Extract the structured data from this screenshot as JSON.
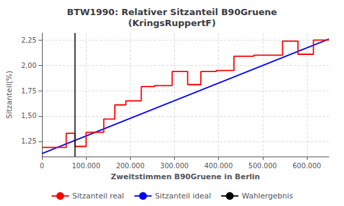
{
  "chart_data": {
    "type": "line",
    "title": "BTW1990: Relativer Sitzanteil B90Gruene\n(KringsRuppertF)",
    "xlabel": "Zweitstimmen B90Gruene in Berlin",
    "ylabel": "Sitzanteil(%)",
    "xlim": [
      0,
      650000
    ],
    "ylim": [
      1.1,
      2.32
    ],
    "xticks": [
      0,
      {
        "value": 100000,
        "label": "100.000"
      },
      {
        "value": 200000,
        "label": "200.000"
      },
      {
        "value": 300000,
        "label": "300.000"
      },
      {
        "value": 400000,
        "label": "400.000"
      },
      {
        "value": 500000,
        "label": "500.000"
      },
      {
        "value": 600000,
        "label": "600.000"
      }
    ],
    "yticks": [
      {
        "value": 1.25,
        "label": "1,25"
      },
      {
        "value": 1.5,
        "label": "1,50"
      },
      {
        "value": 1.75,
        "label": "1,75"
      },
      {
        "value": 2.0,
        "label": "2,00"
      },
      {
        "value": 2.25,
        "label": "2,25"
      }
    ],
    "grid": true,
    "legend": "bottom",
    "series": [
      {
        "name": "Sitzanteil real",
        "color": "red",
        "x": [
          0,
          55000,
          55000,
          75000,
          75000,
          100000,
          100000,
          140000,
          140000,
          165000,
          165000,
          190000,
          190000,
          225000,
          225000,
          255000,
          255000,
          295000,
          295000,
          330000,
          330000,
          360000,
          360000,
          395000,
          395000,
          435000,
          435000,
          480000,
          480000,
          510000,
          510000,
          545000,
          545000,
          580000,
          580000,
          615000,
          615000,
          650000
        ],
        "values": [
          1.19,
          1.19,
          1.33,
          1.33,
          1.2,
          1.2,
          1.34,
          1.34,
          1.47,
          1.47,
          1.61,
          1.61,
          1.65,
          1.65,
          1.79,
          1.79,
          1.8,
          1.8,
          1.94,
          1.94,
          1.81,
          1.81,
          1.94,
          1.94,
          1.95,
          1.95,
          2.09,
          2.09,
          2.1,
          2.1,
          2.1,
          2.1,
          2.24,
          2.24,
          2.11,
          2.11,
          2.25,
          2.25
        ]
      },
      {
        "name": "Sitzanteil ideal",
        "color": "blue",
        "x": [
          0,
          650000
        ],
        "values": [
          1.13,
          2.26
        ]
      },
      {
        "name": "Wahlergebnis",
        "type": "vline",
        "color": "black",
        "x": [
          75000
        ]
      }
    ]
  }
}
